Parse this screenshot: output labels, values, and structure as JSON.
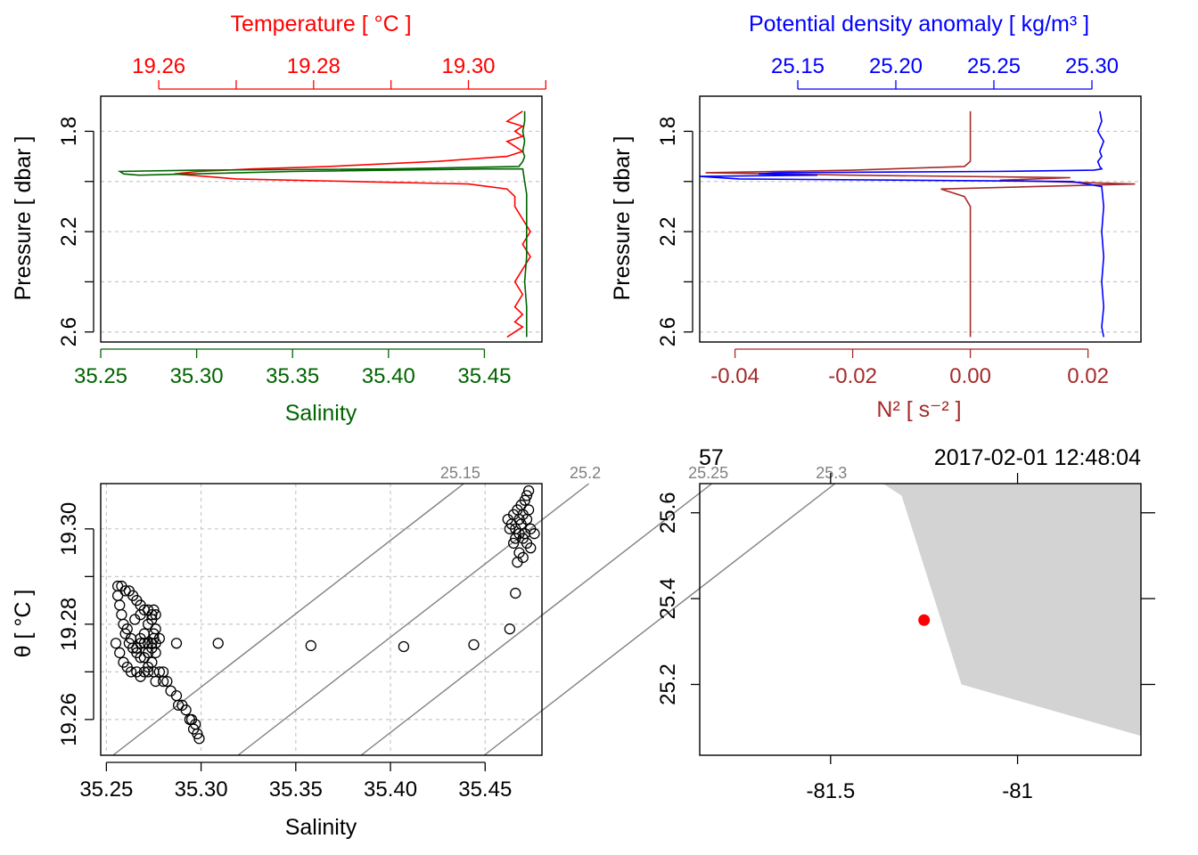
{
  "colors": {
    "temperature": "#ff0000",
    "salinity": "#006400",
    "density": "#0000ff",
    "n2": "#a52a2a",
    "grid": "#c8c8c8",
    "isopycnal": "#808080",
    "land": "#d3d3d3",
    "station": "#ff0000",
    "axis": "#000000"
  },
  "panels": {
    "ts_profile": {
      "title_top": "Temperature [ °C ]",
      "x_label": "Salinity",
      "y_label": "Pressure [ dbar ]",
      "top_ticks": [
        "19.26",
        "19.28",
        "19.30"
      ],
      "bottom_ticks": [
        "35.25",
        "35.30",
        "35.35",
        "35.40",
        "35.45"
      ],
      "y_ticks": [
        "1.8",
        "2.2",
        "2.6"
      ]
    },
    "density_profile": {
      "title_top": "Potential density anomaly [ kg/m³ ]",
      "x_label": "N² [ s⁻² ]",
      "y_label": "Pressure [ dbar ]",
      "top_ticks": [
        "25.15",
        "25.20",
        "25.25",
        "25.30"
      ],
      "bottom_ticks": [
        "-0.04",
        "-0.02",
        "0.00",
        "0.02"
      ],
      "y_ticks": [
        "1.8",
        "2.2",
        "2.6"
      ]
    },
    "ts_diagram": {
      "x_label": "Salinity",
      "y_label": "θ [ °C ]",
      "x_ticks": [
        "35.25",
        "35.30",
        "35.35",
        "35.40",
        "35.45"
      ],
      "y_ticks": [
        "19.26",
        "19.28",
        "19.30"
      ],
      "isopycnal_labels": [
        "25.15",
        "25.2",
        "25.25",
        "25.3"
      ]
    },
    "map": {
      "station_label": "57",
      "datetime_label": "2017-02-01 12:48:04",
      "x_ticks": [
        "-81.5",
        "-81"
      ],
      "y_ticks": [
        "25.2",
        "25.4",
        "25.6"
      ]
    }
  },
  "chart_data": [
    {
      "type": "line",
      "title": "Temperature [ °C ]",
      "xlabel": "Salinity",
      "ylabel": "Pressure [ dbar ]",
      "xlim_salinity": [
        35.25,
        35.48
      ],
      "xlim_temperature": [
        19.2525,
        19.3095
      ],
      "ylim": [
        2.64,
        1.66
      ],
      "series": [
        {
          "name": "Temperature",
          "axis": "top",
          "x": [
            19.307,
            19.306,
            19.305,
            19.307,
            19.306,
            19.307,
            19.305,
            19.306,
            19.307,
            19.305,
            19.296,
            19.282,
            19.272,
            19.265,
            19.262,
            19.266,
            19.27,
            19.285,
            19.3,
            19.305,
            19.306,
            19.306,
            19.307,
            19.308,
            19.307,
            19.308,
            19.307,
            19.306,
            19.307,
            19.306,
            19.307,
            19.306,
            19.307,
            19.306,
            19.305
          ],
          "y": [
            1.72,
            1.74,
            1.76,
            1.78,
            1.8,
            1.82,
            1.84,
            1.86,
            1.88,
            1.9,
            1.92,
            1.94,
            1.95,
            1.96,
            1.97,
            1.98,
            1.99,
            2.0,
            2.01,
            2.03,
            2.06,
            2.1,
            2.15,
            2.2,
            2.25,
            2.3,
            2.35,
            2.4,
            2.45,
            2.5,
            2.53,
            2.56,
            2.58,
            2.6,
            2.62
          ]
        },
        {
          "name": "Salinity",
          "axis": "bottom",
          "x": [
            35.471,
            35.471,
            35.47,
            35.471,
            35.47,
            35.471,
            35.47,
            35.468,
            35.4,
            35.3,
            35.26,
            35.262,
            35.27,
            35.35,
            35.45,
            35.47,
            35.471,
            35.472,
            35.472,
            35.472,
            35.472,
            35.471,
            35.472,
            35.472,
            35.472
          ],
          "y": [
            1.72,
            1.76,
            1.8,
            1.84,
            1.88,
            1.9,
            1.92,
            1.94,
            1.95,
            1.955,
            1.96,
            1.97,
            1.975,
            1.96,
            1.95,
            1.95,
            2.0,
            2.05,
            2.1,
            2.2,
            2.3,
            2.4,
            2.5,
            2.55,
            2.62
          ]
        }
      ]
    },
    {
      "type": "line",
      "title": "Potential density anomaly [ kg/m³ ]",
      "xlabel": "N² [ s⁻² ]",
      "ylabel": "Pressure [ dbar ]",
      "xlim_n2": [
        -0.046,
        0.029
      ],
      "xlim_density": [
        25.1,
        25.325
      ],
      "ylim": [
        2.64,
        1.66
      ],
      "series": [
        {
          "name": "Potential density anomaly",
          "axis": "top",
          "x": [
            25.304,
            25.305,
            25.303,
            25.306,
            25.304,
            25.305,
            25.303,
            25.304,
            25.305,
            25.301,
            25.25,
            25.14,
            25.13,
            25.16,
            25.1,
            25.12,
            25.29,
            25.305,
            25.306,
            25.305,
            25.306,
            25.305,
            25.306,
            25.305,
            25.306
          ],
          "y": [
            1.72,
            1.76,
            1.8,
            1.84,
            1.88,
            1.9,
            1.92,
            1.94,
            1.95,
            1.955,
            1.96,
            1.965,
            1.97,
            1.975,
            1.98,
            1.99,
            2.0,
            2.02,
            2.1,
            2.2,
            2.3,
            2.4,
            2.5,
            2.58,
            2.62
          ]
        },
        {
          "name": "N²",
          "axis": "bottom",
          "x": [
            0.0,
            0.0,
            0.0,
            0.0,
            -0.001,
            -0.02,
            -0.045,
            -0.02,
            0.017,
            0.005,
            0.028,
            -0.005,
            -0.001,
            0.0,
            0.0,
            0.0,
            0.0,
            0.0,
            0.0,
            0.0
          ],
          "y": [
            1.72,
            1.8,
            1.88,
            1.92,
            1.94,
            1.955,
            1.965,
            1.975,
            1.985,
            1.995,
            2.01,
            2.03,
            2.06,
            2.1,
            2.2,
            2.3,
            2.4,
            2.5,
            2.58,
            2.62
          ]
        }
      ]
    },
    {
      "type": "scatter",
      "title": "",
      "xlabel": "Salinity",
      "ylabel": "θ [ °C ]",
      "xlim": [
        35.247,
        35.48
      ],
      "ylim": [
        19.2525,
        19.3095
      ],
      "isopycnals": [
        25.15,
        25.2,
        25.25,
        25.3
      ],
      "points": [
        {
          "x": 35.256,
          "y": 19.288
        },
        {
          "x": 35.258,
          "y": 19.288
        },
        {
          "x": 35.26,
          "y": 19.287
        },
        {
          "x": 35.262,
          "y": 19.287
        },
        {
          "x": 35.264,
          "y": 19.286
        },
        {
          "x": 35.266,
          "y": 19.285
        },
        {
          "x": 35.268,
          "y": 19.284
        },
        {
          "x": 35.27,
          "y": 19.283
        },
        {
          "x": 35.272,
          "y": 19.283
        },
        {
          "x": 35.274,
          "y": 19.282
        },
        {
          "x": 35.256,
          "y": 19.286
        },
        {
          "x": 35.257,
          "y": 19.284
        },
        {
          "x": 35.258,
          "y": 19.282
        },
        {
          "x": 35.259,
          "y": 19.28
        },
        {
          "x": 35.26,
          "y": 19.278
        },
        {
          "x": 35.262,
          "y": 19.276
        },
        {
          "x": 35.264,
          "y": 19.275
        },
        {
          "x": 35.266,
          "y": 19.274
        },
        {
          "x": 35.268,
          "y": 19.273
        },
        {
          "x": 35.27,
          "y": 19.273
        },
        {
          "x": 35.272,
          "y": 19.274
        },
        {
          "x": 35.274,
          "y": 19.275
        },
        {
          "x": 35.275,
          "y": 19.277
        },
        {
          "x": 35.276,
          "y": 19.279
        },
        {
          "x": 35.274,
          "y": 19.281
        },
        {
          "x": 35.272,
          "y": 19.28
        },
        {
          "x": 35.27,
          "y": 19.278
        },
        {
          "x": 35.268,
          "y": 19.276
        },
        {
          "x": 35.266,
          "y": 19.275
        },
        {
          "x": 35.268,
          "y": 19.277
        },
        {
          "x": 35.27,
          "y": 19.276
        },
        {
          "x": 35.272,
          "y": 19.276
        },
        {
          "x": 35.274,
          "y": 19.276
        },
        {
          "x": 35.276,
          "y": 19.276
        },
        {
          "x": 35.278,
          "y": 19.277
        },
        {
          "x": 35.276,
          "y": 19.274
        },
        {
          "x": 35.274,
          "y": 19.272
        },
        {
          "x": 35.272,
          "y": 19.271
        },
        {
          "x": 35.27,
          "y": 19.27
        },
        {
          "x": 35.268,
          "y": 19.269
        },
        {
          "x": 35.272,
          "y": 19.27
        },
        {
          "x": 35.275,
          "y": 19.27
        },
        {
          "x": 35.278,
          "y": 19.27
        },
        {
          "x": 35.28,
          "y": 19.27
        },
        {
          "x": 35.282,
          "y": 19.268
        },
        {
          "x": 35.284,
          "y": 19.266
        },
        {
          "x": 35.287,
          "y": 19.265
        },
        {
          "x": 35.29,
          "y": 19.263
        },
        {
          "x": 35.292,
          "y": 19.262
        },
        {
          "x": 35.294,
          "y": 19.26
        },
        {
          "x": 35.296,
          "y": 19.258
        },
        {
          "x": 35.298,
          "y": 19.257
        },
        {
          "x": 35.299,
          "y": 19.256
        },
        {
          "x": 35.297,
          "y": 19.259
        },
        {
          "x": 35.295,
          "y": 19.26
        },
        {
          "x": 35.288,
          "y": 19.263
        },
        {
          "x": 35.28,
          "y": 19.268
        },
        {
          "x": 35.276,
          "y": 19.268
        },
        {
          "x": 35.263,
          "y": 19.277
        },
        {
          "x": 35.261,
          "y": 19.279
        },
        {
          "x": 35.265,
          "y": 19.281
        },
        {
          "x": 35.268,
          "y": 19.282
        },
        {
          "x": 35.275,
          "y": 19.283
        },
        {
          "x": 35.276,
          "y": 19.282
        },
        {
          "x": 35.275,
          "y": 19.278
        },
        {
          "x": 35.255,
          "y": 19.276
        },
        {
          "x": 35.257,
          "y": 19.274
        },
        {
          "x": 35.259,
          "y": 19.272
        },
        {
          "x": 35.261,
          "y": 19.271
        },
        {
          "x": 35.263,
          "y": 19.27
        },
        {
          "x": 35.266,
          "y": 19.27
        },
        {
          "x": 35.287,
          "y": 19.276
        },
        {
          "x": 35.309,
          "y": 19.276
        },
        {
          "x": 35.358,
          "y": 19.2755
        },
        {
          "x": 35.407,
          "y": 19.2753
        },
        {
          "x": 35.444,
          "y": 19.2757
        },
        {
          "x": 35.463,
          "y": 19.279
        },
        {
          "x": 35.466,
          "y": 19.2865
        },
        {
          "x": 35.462,
          "y": 19.302
        },
        {
          "x": 35.464,
          "y": 19.301
        },
        {
          "x": 35.466,
          "y": 19.3
        },
        {
          "x": 35.468,
          "y": 19.299
        },
        {
          "x": 35.47,
          "y": 19.298
        },
        {
          "x": 35.472,
          "y": 19.297
        },
        {
          "x": 35.474,
          "y": 19.296
        },
        {
          "x": 35.465,
          "y": 19.303
        },
        {
          "x": 35.467,
          "y": 19.304
        },
        {
          "x": 35.469,
          "y": 19.305
        },
        {
          "x": 35.471,
          "y": 19.306
        },
        {
          "x": 35.472,
          "y": 19.307
        },
        {
          "x": 35.473,
          "y": 19.308
        },
        {
          "x": 35.47,
          "y": 19.303
        },
        {
          "x": 35.466,
          "y": 19.298
        },
        {
          "x": 35.468,
          "y": 19.295
        },
        {
          "x": 35.47,
          "y": 19.294
        },
        {
          "x": 35.472,
          "y": 19.302
        },
        {
          "x": 35.474,
          "y": 19.3
        },
        {
          "x": 35.476,
          "y": 19.299
        },
        {
          "x": 35.463,
          "y": 19.3
        },
        {
          "x": 35.465,
          "y": 19.297
        },
        {
          "x": 35.469,
          "y": 19.301
        },
        {
          "x": 35.471,
          "y": 19.299
        },
        {
          "x": 35.473,
          "y": 19.304
        },
        {
          "x": 35.468,
          "y": 19.302
        },
        {
          "x": 35.467,
          "y": 19.293
        }
      ]
    },
    {
      "type": "map",
      "title": "",
      "xlim": [
        -81.85,
        -80.67
      ],
      "ylim": [
        25.035,
        25.668
      ],
      "land_polygon": [
        {
          "lon": -81.36,
          "lat": 25.668
        },
        {
          "lon": -81.31,
          "lat": 25.64
        },
        {
          "lon": -81.15,
          "lat": 25.2
        },
        {
          "lon": -80.67,
          "lat": 25.08
        },
        {
          "lon": -80.67,
          "lat": 25.668
        }
      ],
      "station": {
        "lon": -81.25,
        "lat": 25.35
      }
    }
  ]
}
